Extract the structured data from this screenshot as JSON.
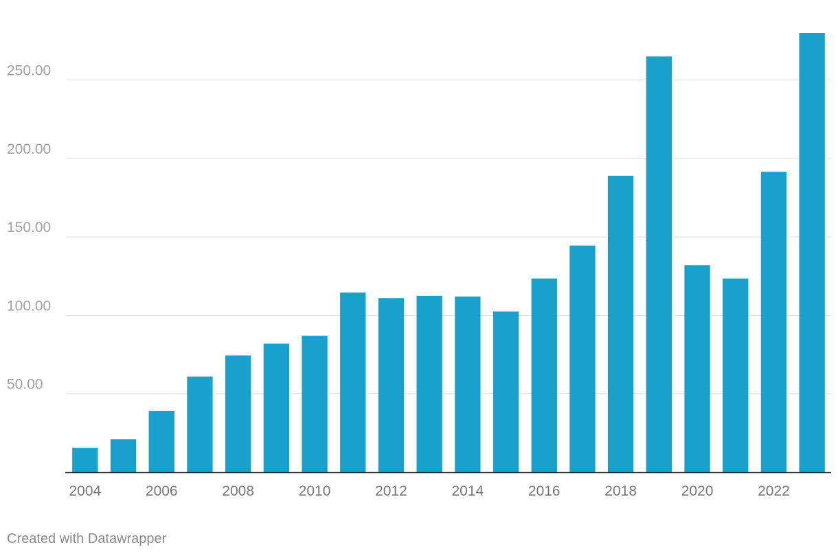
{
  "chart_data": {
    "type": "bar",
    "title": "",
    "xlabel": "",
    "ylabel": "",
    "categories": [
      "2004",
      "2005",
      "2006",
      "2007",
      "2008",
      "2009",
      "2010",
      "2011",
      "2012",
      "2013",
      "2014",
      "2015",
      "2016",
      "2017",
      "2018",
      "2019",
      "2020",
      "2021",
      "2022",
      "2023"
    ],
    "values": [
      15.5,
      21,
      39,
      61,
      74.5,
      82,
      87,
      114.5,
      111,
      112.5,
      112,
      102.5,
      123.5,
      144.5,
      189,
      265,
      132,
      123.5,
      191.5,
      280
    ],
    "x_tick_labels": [
      "2004",
      "2006",
      "2008",
      "2010",
      "2012",
      "2014",
      "2016",
      "2018",
      "2020",
      "2022"
    ],
    "y_ticks": [
      50,
      100,
      150,
      200,
      250
    ],
    "y_tick_labels": [
      "50.00",
      "100.00",
      "150.00",
      "200.00",
      "250.00"
    ],
    "ylim": [
      0,
      280
    ],
    "grid": true,
    "bar_color": "#18a1cd",
    "gridline_color": "#e3e3e3",
    "axis_color": "#222222",
    "label_color": "#a0a0a0"
  },
  "footer": {
    "credit": "Created with Datawrapper"
  }
}
